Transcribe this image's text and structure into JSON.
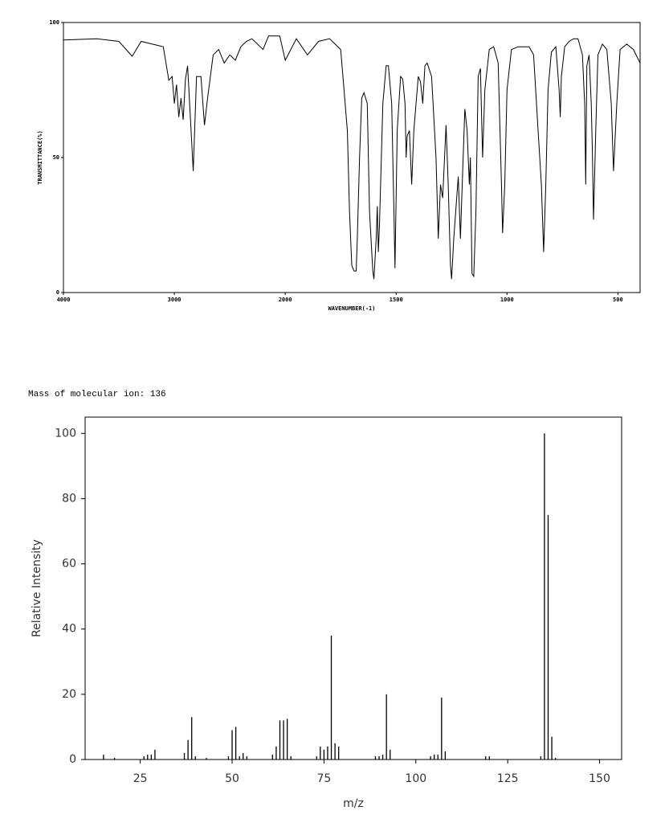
{
  "chart_data": [
    {
      "type": "line",
      "ylabel": "TRANSMITTANCE(%)",
      "xlabel": "WAVENUMBER(-1)",
      "xlim": [
        4000,
        400
      ],
      "xbreak": 2000,
      "ylim": [
        0,
        100
      ],
      "xticks": [
        4000,
        3000,
        2000,
        1500,
        1000,
        500
      ],
      "yticks": [
        0,
        50,
        100
      ],
      "color": "#000000",
      "x": [
        4000,
        3700,
        3500,
        3380,
        3300,
        3100,
        3050,
        3020,
        3000,
        2980,
        2960,
        2940,
        2920,
        2900,
        2880,
        2830,
        2800,
        2760,
        2728,
        2700,
        2650,
        2600,
        2550,
        2500,
        2450,
        2400,
        2350,
        2300,
        2200,
        2150,
        2050,
        2000,
        1950,
        1900,
        1850,
        1800,
        1750,
        1740,
        1720,
        1710,
        1700,
        1690,
        1680,
        1675,
        1665,
        1655,
        1645,
        1630,
        1620,
        1605,
        1600,
        1590,
        1585,
        1580,
        1575,
        1560,
        1545,
        1535,
        1520,
        1510,
        1505,
        1495,
        1480,
        1470,
        1460,
        1455,
        1450,
        1440,
        1430,
        1420,
        1400,
        1390,
        1380,
        1370,
        1360,
        1340,
        1320,
        1310,
        1300,
        1290,
        1275,
        1265,
        1255,
        1250,
        1240,
        1220,
        1210,
        1200,
        1190,
        1180,
        1170,
        1165,
        1158,
        1150,
        1140,
        1130,
        1120,
        1110,
        1100,
        1080,
        1060,
        1040,
        1025,
        1020,
        1010,
        1000,
        980,
        950,
        900,
        880,
        860,
        845,
        835,
        825,
        815,
        800,
        780,
        765,
        760,
        755,
        740,
        720,
        700,
        680,
        660,
        650,
        645,
        640,
        630,
        620,
        615,
        610,
        600,
        590,
        570,
        550,
        530,
        520,
        505,
        490,
        460,
        430,
        400
      ],
      "values": [
        93.5,
        94,
        93,
        87.5,
        93,
        91,
        78.6,
        80,
        70,
        77,
        65,
        72,
        64,
        79,
        84,
        45,
        80,
        80,
        62,
        72,
        88,
        90,
        85,
        88,
        86,
        91,
        93,
        94,
        90,
        95,
        95,
        86,
        94,
        88,
        93,
        94,
        90,
        80,
        60,
        30,
        10,
        8,
        8,
        20,
        50,
        72,
        74,
        70,
        30,
        8,
        5,
        20,
        32,
        15,
        25,
        70,
        84,
        84,
        70,
        30,
        9,
        60,
        80,
        79,
        70,
        50,
        58,
        60,
        40,
        60,
        80,
        78,
        70,
        84,
        85,
        80,
        50,
        20,
        40,
        35,
        62,
        40,
        10,
        5,
        20,
        43,
        20,
        45,
        68,
        60,
        40,
        50,
        7,
        6,
        30,
        80,
        83,
        50,
        75,
        90,
        91,
        85,
        40,
        22,
        40,
        75,
        90,
        91,
        91,
        88,
        60,
        40,
        15,
        40,
        75,
        89,
        91,
        75,
        65,
        80,
        91,
        93,
        94,
        94,
        88,
        70,
        40,
        84,
        88,
        70,
        52,
        27,
        60,
        88,
        92,
        90,
        70,
        45,
        70,
        90,
        92,
        90,
        85
      ]
    },
    {
      "type": "stem",
      "title": "Mass of molecular ion: 136",
      "ylabel": "Relative Intensity",
      "xlabel": "m/z",
      "xlim": [
        10,
        156
      ],
      "ylim": [
        0,
        105
      ],
      "xticks": [
        25,
        50,
        75,
        100,
        125,
        150
      ],
      "yticks": [
        0,
        20,
        40,
        60,
        80,
        100
      ],
      "color": "#000000",
      "x": [
        15,
        18,
        26,
        27,
        28,
        29,
        37,
        38,
        39,
        40,
        43,
        49,
        50,
        51,
        52,
        53,
        54,
        61,
        62,
        63,
        64,
        65,
        66,
        73,
        74,
        75,
        76,
        77,
        78,
        79,
        89,
        90,
        91,
        92,
        93,
        104,
        105,
        106,
        107,
        108,
        119,
        120,
        134,
        135,
        136,
        137,
        138
      ],
      "values": [
        1.5,
        0.5,
        1,
        1.5,
        1.5,
        3,
        2,
        6,
        13,
        1,
        0.5,
        1,
        9,
        10,
        1,
        2,
        1,
        1.5,
        4,
        12,
        12,
        12.5,
        1,
        1,
        4,
        3,
        4,
        38,
        5,
        4,
        1,
        1,
        1.5,
        20,
        3,
        1,
        1.5,
        1.5,
        19,
        2.5,
        1,
        1,
        1,
        100,
        75,
        7,
        0.5
      ]
    }
  ]
}
